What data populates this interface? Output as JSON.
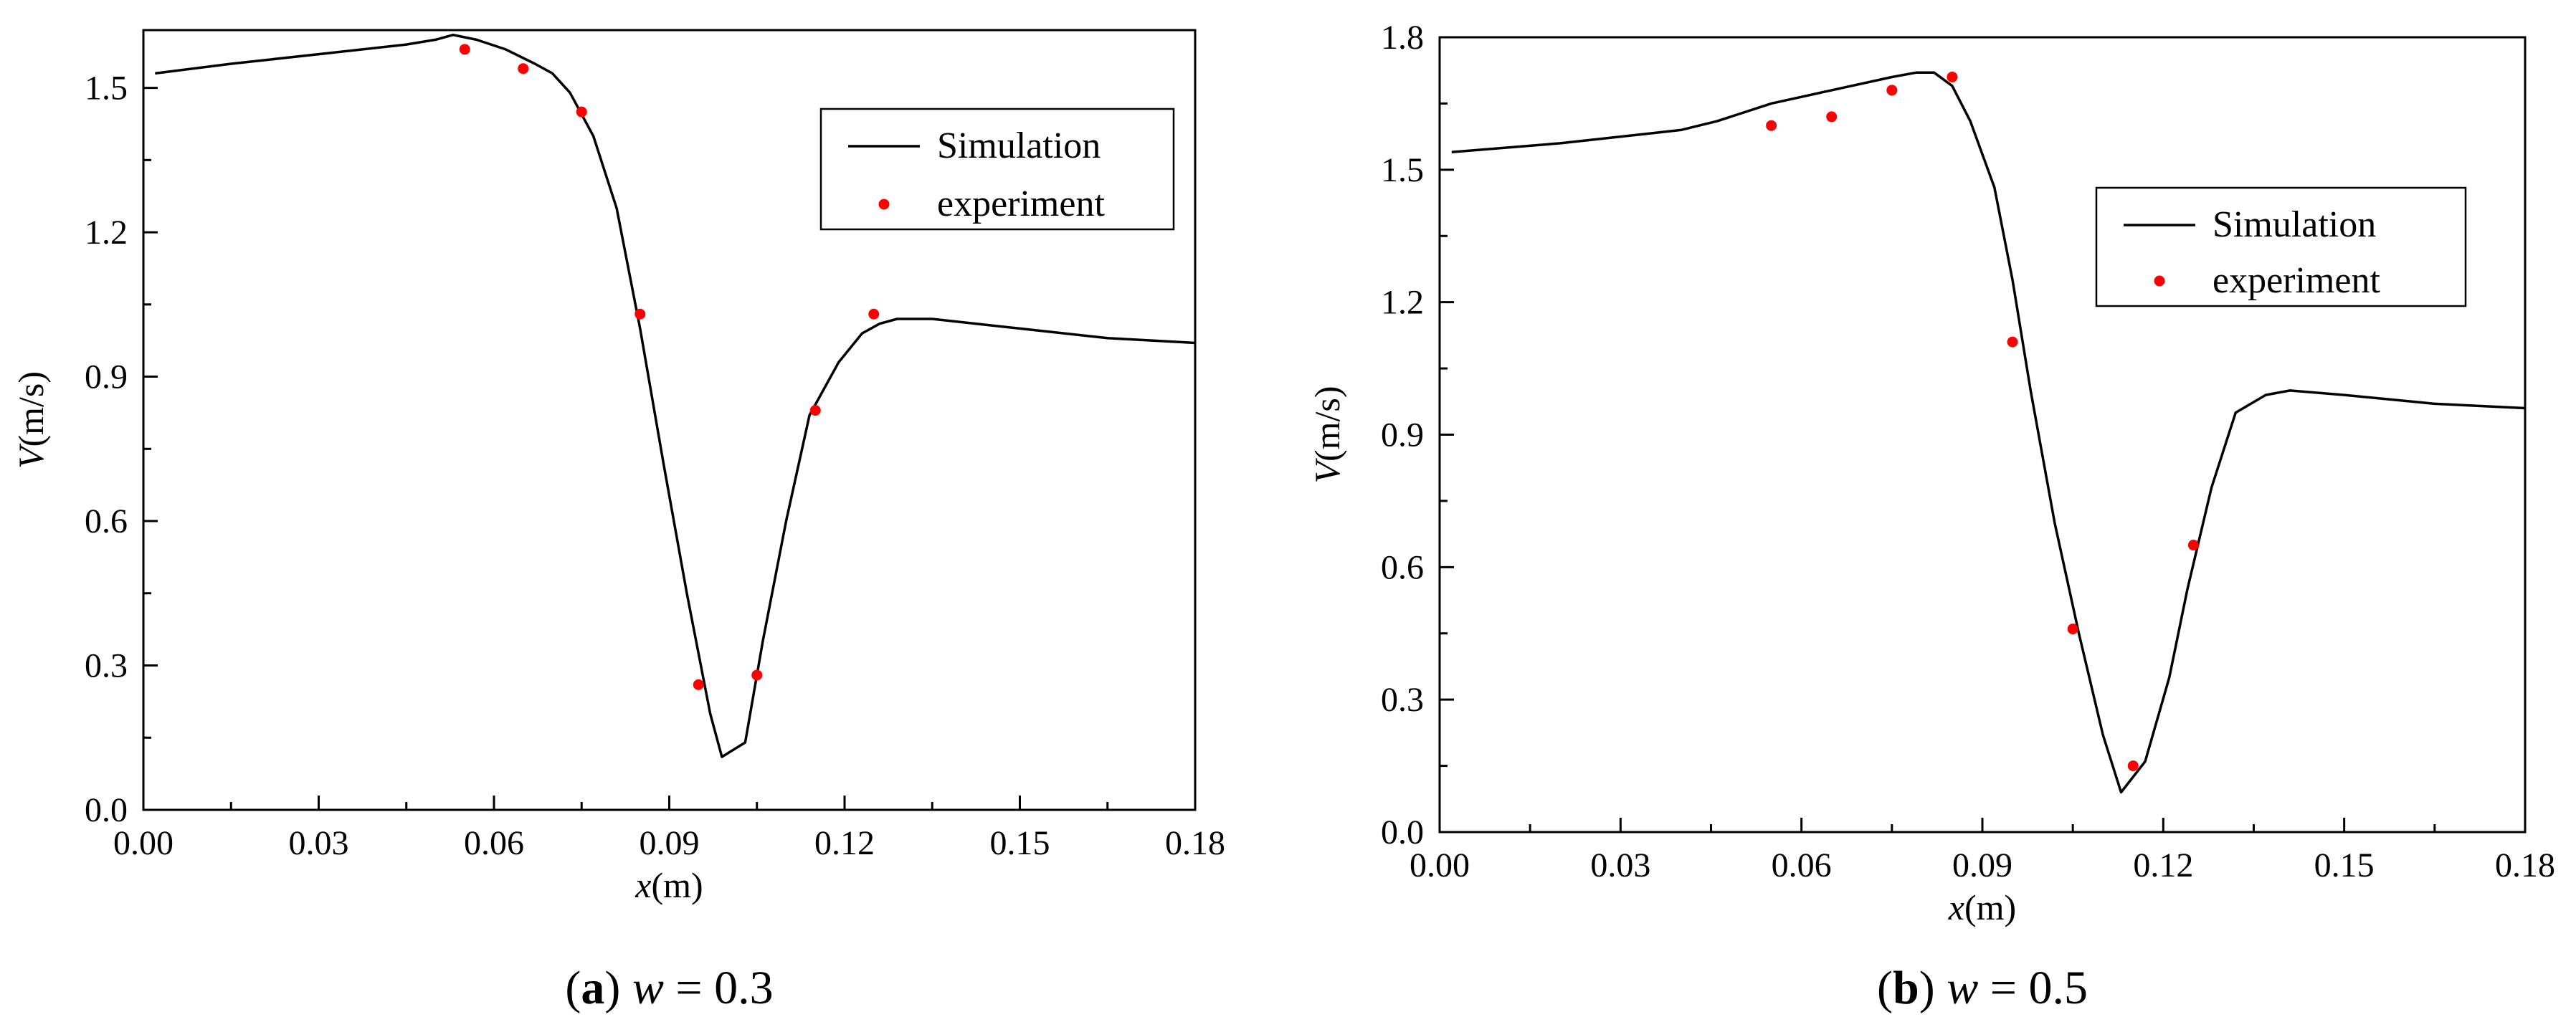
{
  "chart_data": [
    {
      "type": "line",
      "panel_letter": "a",
      "caption_var": "w",
      "caption_rest": " = 0.3",
      "ylabel_var": "V",
      "ylabel_unit": "(m/s)",
      "xlabel_var": "x",
      "xlabel_unit": "(m)",
      "xlim": [
        0,
        0.18
      ],
      "ylim": [
        0,
        1.62
      ],
      "xticks": [
        0.0,
        0.03,
        0.06,
        0.09,
        0.12,
        0.15,
        0.18
      ],
      "xtick_labels": [
        "0.00",
        "0.03",
        "0.06",
        "0.09",
        "0.12",
        "0.15",
        "0.18"
      ],
      "yticks": [
        0.0,
        0.3,
        0.6,
        0.9,
        1.2,
        1.5
      ],
      "ytick_labels": [
        "0.0",
        "0.3",
        "0.6",
        "0.9",
        "1.2",
        "1.5"
      ],
      "legend_position": "top-right",
      "series": [
        {
          "name": "Simulation",
          "kind": "line",
          "color": "#000000",
          "x": [
            0.002,
            0.015,
            0.03,
            0.045,
            0.05,
            0.053,
            0.057,
            0.062,
            0.067,
            0.07,
            0.073,
            0.077,
            0.081,
            0.085,
            0.089,
            0.093,
            0.097,
            0.099,
            0.103,
            0.106,
            0.11,
            0.114,
            0.119,
            0.123,
            0.126,
            0.129,
            0.135,
            0.15,
            0.165,
            0.18
          ],
          "y": [
            1.53,
            1.55,
            1.57,
            1.59,
            1.6,
            1.61,
            1.6,
            1.58,
            1.55,
            1.53,
            1.49,
            1.4,
            1.25,
            1.0,
            0.72,
            0.45,
            0.2,
            0.11,
            0.14,
            0.35,
            0.6,
            0.82,
            0.93,
            0.99,
            1.01,
            1.02,
            1.02,
            1.0,
            0.98,
            0.97
          ]
        },
        {
          "name": "experiment",
          "kind": "scatter",
          "color": "#ff0000",
          "x": [
            0.055,
            0.065,
            0.075,
            0.085,
            0.095,
            0.105,
            0.115,
            0.125
          ],
          "y": [
            1.58,
            1.54,
            1.45,
            1.03,
            0.26,
            0.28,
            0.83,
            1.03
          ]
        }
      ]
    },
    {
      "type": "line",
      "panel_letter": "b",
      "caption_var": "w",
      "caption_rest": " = 0.5",
      "ylabel_var": "V",
      "ylabel_unit": "(m/s)",
      "xlabel_var": "x",
      "xlabel_unit": "(m)",
      "xlim": [
        0,
        0.18
      ],
      "ylim": [
        0,
        1.8
      ],
      "xticks": [
        0.0,
        0.03,
        0.06,
        0.09,
        0.12,
        0.15,
        0.18
      ],
      "xtick_labels": [
        "0.00",
        "0.03",
        "0.06",
        "0.09",
        "0.12",
        "0.15",
        "0.18"
      ],
      "yticks": [
        0.0,
        0.3,
        0.6,
        0.9,
        1.2,
        1.5,
        1.8
      ],
      "ytick_labels": [
        "0.0",
        "0.3",
        "0.6",
        "0.9",
        "1.2",
        "1.5",
        "1.8"
      ],
      "legend_position": "upper-right",
      "series": [
        {
          "name": "Simulation",
          "kind": "line",
          "color": "#000000",
          "x": [
            0.002,
            0.02,
            0.04,
            0.046,
            0.055,
            0.065,
            0.075,
            0.079,
            0.082,
            0.085,
            0.088,
            0.092,
            0.095,
            0.098,
            0.102,
            0.106,
            0.11,
            0.113,
            0.117,
            0.121,
            0.124,
            0.128,
            0.132,
            0.137,
            0.141,
            0.15,
            0.165,
            0.18
          ],
          "y": [
            1.54,
            1.56,
            1.59,
            1.61,
            1.65,
            1.68,
            1.71,
            1.72,
            1.72,
            1.69,
            1.61,
            1.46,
            1.25,
            1.0,
            0.7,
            0.45,
            0.22,
            0.09,
            0.16,
            0.35,
            0.55,
            0.78,
            0.95,
            0.99,
            1.0,
            0.99,
            0.97,
            0.96
          ]
        },
        {
          "name": "experiment",
          "kind": "scatter",
          "color": "#ff0000",
          "x": [
            0.055,
            0.065,
            0.075,
            0.085,
            0.095,
            0.105,
            0.115,
            0.125
          ],
          "y": [
            1.6,
            1.62,
            1.68,
            1.71,
            1.11,
            0.46,
            0.15,
            0.65
          ]
        }
      ]
    }
  ]
}
